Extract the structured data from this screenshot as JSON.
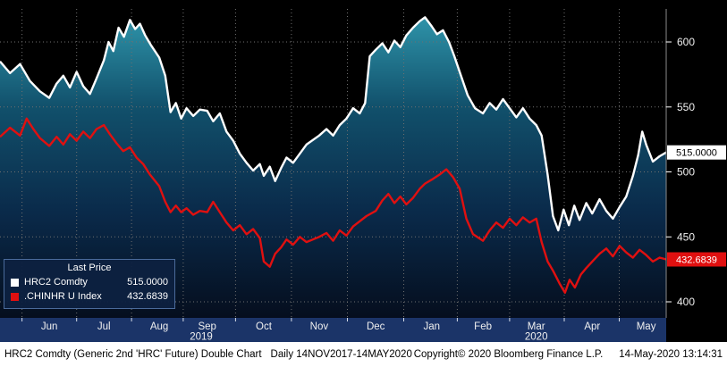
{
  "chart_data": {
    "type": "line",
    "title": "HRC2 Comdty (Generic 2nd 'HRC' Future) Double Chart",
    "subtitle": "Daily 14NOV2017-14MAY2020",
    "ylim": [
      395,
      625
    ],
    "y_ticks": [
      400,
      450,
      500,
      550,
      600
    ],
    "grid": "dotted",
    "legend": {
      "title": "Last Price",
      "position": "bottom-left"
    },
    "x_axis": {
      "months": [
        "Jun",
        "Jul",
        "Aug",
        "Sep",
        "Oct",
        "Nov",
        "Dec",
        "Jan",
        "Feb",
        "Mar",
        "Apr",
        "May"
      ],
      "month_x_pct": [
        7.4,
        15.6,
        23.9,
        31.1,
        39.6,
        47.9,
        56.4,
        64.8,
        72.5,
        80.5,
        88.9,
        97.0
      ],
      "years": [
        {
          "label": "2019",
          "x_pct": 30.2
        },
        {
          "label": "2020",
          "x_pct": 80.5
        }
      ]
    },
    "area_gradient": [
      {
        "offset": "0%",
        "color": "#2e93a9"
      },
      {
        "offset": "30%",
        "color": "#11506b"
      },
      {
        "offset": "65%",
        "color": "#0a2a4a"
      },
      {
        "offset": "100%",
        "color": "#050e1e"
      }
    ],
    "series": [
      {
        "name": "HRC2 Comdty",
        "color": "#ffffff",
        "tag_text": "#000000",
        "tag_name": "hrc2-price-tag",
        "last_price": "515.0000",
        "points": [
          [
            0,
            585
          ],
          [
            1.5,
            576
          ],
          [
            3,
            583
          ],
          [
            4.5,
            570
          ],
          [
            6,
            562
          ],
          [
            7.4,
            557
          ],
          [
            8.5,
            568
          ],
          [
            9.5,
            574
          ],
          [
            10.5,
            565
          ],
          [
            11.5,
            577
          ],
          [
            12.5,
            566
          ],
          [
            13.5,
            560
          ],
          [
            14.5,
            572
          ],
          [
            15.6,
            586
          ],
          [
            16.3,
            600
          ],
          [
            17,
            593
          ],
          [
            17.8,
            611
          ],
          [
            18.6,
            604
          ],
          [
            19.5,
            617
          ],
          [
            20.3,
            610
          ],
          [
            21,
            614
          ],
          [
            21.8,
            605
          ],
          [
            22.6,
            598
          ],
          [
            23.9,
            588
          ],
          [
            24.8,
            574
          ],
          [
            25.6,
            546
          ],
          [
            26.4,
            553
          ],
          [
            27.2,
            541
          ],
          [
            28,
            549
          ],
          [
            29,
            543
          ],
          [
            30,
            548
          ],
          [
            31.1,
            547
          ],
          [
            32,
            539
          ],
          [
            33,
            545
          ],
          [
            34,
            531
          ],
          [
            35,
            524
          ],
          [
            36,
            514
          ],
          [
            37,
            507
          ],
          [
            38,
            501
          ],
          [
            39,
            506
          ],
          [
            39.6,
            497
          ],
          [
            40.5,
            504
          ],
          [
            41.3,
            493
          ],
          [
            42.2,
            503
          ],
          [
            43,
            511
          ],
          [
            44,
            507
          ],
          [
            45,
            514
          ],
          [
            46,
            521
          ],
          [
            47.9,
            528
          ],
          [
            49,
            533
          ],
          [
            50,
            528
          ],
          [
            51,
            536
          ],
          [
            52,
            541
          ],
          [
            53,
            549
          ],
          [
            54,
            545
          ],
          [
            54.8,
            553
          ],
          [
            55.5,
            589
          ],
          [
            56.4,
            594
          ],
          [
            57.4,
            599
          ],
          [
            58.3,
            592
          ],
          [
            59.2,
            601
          ],
          [
            60.1,
            596
          ],
          [
            61,
            605
          ],
          [
            62,
            611
          ],
          [
            63,
            616
          ],
          [
            63.8,
            619
          ],
          [
            64.8,
            612
          ],
          [
            65.6,
            606
          ],
          [
            66.5,
            609
          ],
          [
            67.4,
            600
          ],
          [
            68.2,
            589
          ],
          [
            69.2,
            574
          ],
          [
            70.2,
            559
          ],
          [
            71.3,
            549
          ],
          [
            72.5,
            545
          ],
          [
            73.5,
            553
          ],
          [
            74.5,
            548
          ],
          [
            75.5,
            556
          ],
          [
            76.5,
            549
          ],
          [
            77.5,
            542
          ],
          [
            78.5,
            549
          ],
          [
            79.5,
            541
          ],
          [
            80.5,
            536
          ],
          [
            81.3,
            528
          ],
          [
            82.2,
            498
          ],
          [
            83,
            466
          ],
          [
            83.8,
            455
          ],
          [
            84.6,
            471
          ],
          [
            85.4,
            459
          ],
          [
            86.2,
            474
          ],
          [
            87,
            463
          ],
          [
            88,
            476
          ],
          [
            88.9,
            468
          ],
          [
            90,
            479
          ],
          [
            91,
            470
          ],
          [
            92,
            464
          ],
          [
            93,
            473
          ],
          [
            94,
            481
          ],
          [
            95,
            497
          ],
          [
            95.8,
            513
          ],
          [
            96.4,
            531
          ],
          [
            97,
            521
          ],
          [
            98,
            508
          ],
          [
            99,
            512
          ],
          [
            100,
            515
          ]
        ]
      },
      {
        "name": ".CHINHR U Index",
        "color": "#e01010",
        "tag_text": "#ffffff",
        "tag_name": "chinhr-price-tag",
        "last_price": "432.6839",
        "points": [
          [
            0,
            527
          ],
          [
            1.5,
            534
          ],
          [
            3,
            528
          ],
          [
            4,
            541
          ],
          [
            5,
            533
          ],
          [
            6,
            526
          ],
          [
            7.4,
            520
          ],
          [
            8.5,
            527
          ],
          [
            9.5,
            521
          ],
          [
            10.5,
            529
          ],
          [
            11.5,
            524
          ],
          [
            12.5,
            531
          ],
          [
            13.5,
            526
          ],
          [
            14.5,
            533
          ],
          [
            15.6,
            536
          ],
          [
            16.5,
            529
          ],
          [
            17.5,
            522
          ],
          [
            18.5,
            516
          ],
          [
            19.5,
            519
          ],
          [
            20.5,
            511
          ],
          [
            21.5,
            506
          ],
          [
            22.5,
            498
          ],
          [
            23.9,
            489
          ],
          [
            24.8,
            477
          ],
          [
            25.6,
            469
          ],
          [
            26.4,
            474
          ],
          [
            27.2,
            469
          ],
          [
            28,
            472
          ],
          [
            29,
            467
          ],
          [
            30,
            470
          ],
          [
            31.1,
            469
          ],
          [
            32,
            477
          ],
          [
            33,
            469
          ],
          [
            34,
            461
          ],
          [
            35,
            455
          ],
          [
            36,
            459
          ],
          [
            37,
            452
          ],
          [
            38,
            456
          ],
          [
            39,
            449
          ],
          [
            39.6,
            431
          ],
          [
            40.5,
            427
          ],
          [
            41.3,
            437
          ],
          [
            42.2,
            442
          ],
          [
            43,
            448
          ],
          [
            44,
            444
          ],
          [
            45,
            450
          ],
          [
            46,
            446
          ],
          [
            47.9,
            450
          ],
          [
            49,
            453
          ],
          [
            50,
            447
          ],
          [
            51,
            455
          ],
          [
            52,
            451
          ],
          [
            53,
            458
          ],
          [
            54,
            462
          ],
          [
            55,
            466
          ],
          [
            56.4,
            470
          ],
          [
            57.4,
            478
          ],
          [
            58.3,
            483
          ],
          [
            59.2,
            476
          ],
          [
            60.1,
            481
          ],
          [
            61,
            475
          ],
          [
            62,
            480
          ],
          [
            63,
            487
          ],
          [
            63.8,
            491
          ],
          [
            64.8,
            494
          ],
          [
            66,
            498
          ],
          [
            67,
            502
          ],
          [
            68,
            496
          ],
          [
            69,
            487
          ],
          [
            70,
            464
          ],
          [
            71,
            452
          ],
          [
            72.5,
            447
          ],
          [
            73.5,
            455
          ],
          [
            74.5,
            461
          ],
          [
            75.5,
            457
          ],
          [
            76.5,
            464
          ],
          [
            77.5,
            459
          ],
          [
            78.5,
            465
          ],
          [
            79.5,
            461
          ],
          [
            80.5,
            464
          ],
          [
            81.3,
            446
          ],
          [
            82.2,
            431
          ],
          [
            83,
            424
          ],
          [
            84,
            414
          ],
          [
            84.8,
            407
          ],
          [
            85.5,
            417
          ],
          [
            86.3,
            411
          ],
          [
            87.2,
            421
          ],
          [
            88,
            426
          ],
          [
            88.9,
            431
          ],
          [
            90,
            437
          ],
          [
            91,
            441
          ],
          [
            92,
            435
          ],
          [
            93,
            443
          ],
          [
            94,
            438
          ],
          [
            95,
            434
          ],
          [
            96,
            440
          ],
          [
            97,
            436
          ],
          [
            98,
            431
          ],
          [
            99,
            434
          ],
          [
            100,
            432.68
          ]
        ]
      }
    ]
  },
  "colors": {
    "background": "#000000",
    "grid": "#6f6f6f",
    "axis_text": "#f0f0f0",
    "axis_strip": "#1b3468",
    "legend_bg": "#0d2140",
    "legend_border": "#4a6a9a",
    "footer_bg": "#ffffff",
    "footer_text": "#000000"
  },
  "footer": {
    "description": "HRC2 Comdty (Generic 2nd 'HRC' Future) Double Chart",
    "range": "Daily 14NOV2017-14MAY2020",
    "copyright": "Copyright© 2020 Bloomberg Finance L.P.",
    "timestamp": "14-May-2020 13:14:31"
  }
}
